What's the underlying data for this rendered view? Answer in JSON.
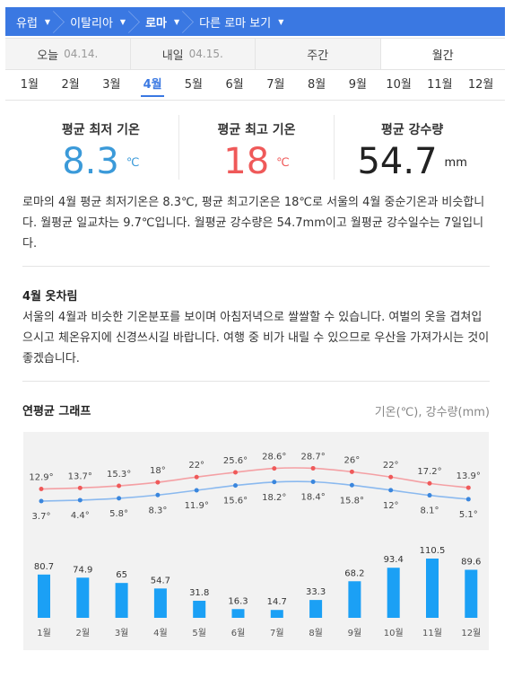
{
  "breadcrumb": [
    {
      "label": "유럽"
    },
    {
      "label": "이탈리아"
    },
    {
      "label": "로마"
    },
    {
      "label": "다른 로마 보기"
    }
  ],
  "day_tabs": [
    {
      "label": "오늘",
      "date": "04.14."
    },
    {
      "label": "내일",
      "date": "04.15."
    },
    {
      "label": "주간",
      "date": ""
    },
    {
      "label": "월간",
      "date": ""
    }
  ],
  "months": [
    "1월",
    "2월",
    "3월",
    "4월",
    "5월",
    "6월",
    "7월",
    "8월",
    "9월",
    "10월",
    "11월",
    "12월"
  ],
  "selected_month": "4월",
  "stats": {
    "min_label": "평균 최저 기온",
    "min_value": "8.3",
    "min_unit": "℃",
    "max_label": "평균 최고 기온",
    "max_value": "18",
    "max_unit": "℃",
    "rain_label": "평균 강수량",
    "rain_value": "54.7",
    "rain_unit": "mm"
  },
  "description": "로마의 4월 평균 최저기온은 8.3℃, 평균 최고기온은 18℃로 서울의 4월 중순기온과 비슷합니다. 월평균 일교차는 9.7℃입니다. 월평균 강수량은 54.7mm이고 월평균 강수일수는 7일입니다.",
  "clothing": {
    "title": "4월 옷차림",
    "text": "서울의 4월과 비슷한 기온분포를 보이며 아침저녁으로 쌀쌀할 수 있습니다. 여벌의 옷을 겹쳐입으시고 체온유지에 신경쓰시길 바랍니다. 여행 중 비가 내릴 수 있으므로 우산을 가져가시는 것이 좋겠습니다."
  },
  "graph": {
    "title": "연평균 그래프",
    "legend": "기온(℃), 강수량(mm)"
  },
  "colors": {
    "accent": "#3a78e2",
    "max_temp": "#ef5959",
    "min_temp": "#3b9ad9",
    "bar": "#1ba0f5"
  },
  "chart_data": {
    "type": "line+bar",
    "categories": [
      "1월",
      "2월",
      "3월",
      "4월",
      "5월",
      "6월",
      "7월",
      "8월",
      "9월",
      "10월",
      "11월",
      "12월"
    ],
    "max_temp": [
      12.9,
      13.7,
      15.3,
      18,
      22,
      25.6,
      28.6,
      28.7,
      26,
      22,
      17.2,
      13.9
    ],
    "max_temp_labels": [
      "12.9°",
      "13.7°",
      "15.3°",
      "18°",
      "22°",
      "25.6°",
      "28.6°",
      "28.7°",
      "26°",
      "22°",
      "17.2°",
      "13.9°"
    ],
    "min_temp": [
      3.7,
      4.4,
      5.8,
      8.3,
      11.9,
      15.6,
      18.2,
      18.4,
      15.8,
      12,
      8.1,
      5.1
    ],
    "min_temp_labels": [
      "3.7°",
      "4.4°",
      "5.8°",
      "8.3°",
      "11.9°",
      "15.6°",
      "18.2°",
      "18.4°",
      "15.8°",
      "12°",
      "8.1°",
      "5.1°"
    ],
    "precipitation": [
      80.7,
      74.9,
      65,
      54.7,
      31.8,
      16.3,
      14.7,
      33.3,
      68.2,
      93.4,
      110.5,
      89.6
    ],
    "precipitation_labels": [
      "80.7",
      "74.9",
      "65",
      "54.7",
      "31.8",
      "16.3",
      "14.7",
      "33.3",
      "68.2",
      "93.4",
      "110.5",
      "89.6"
    ]
  }
}
